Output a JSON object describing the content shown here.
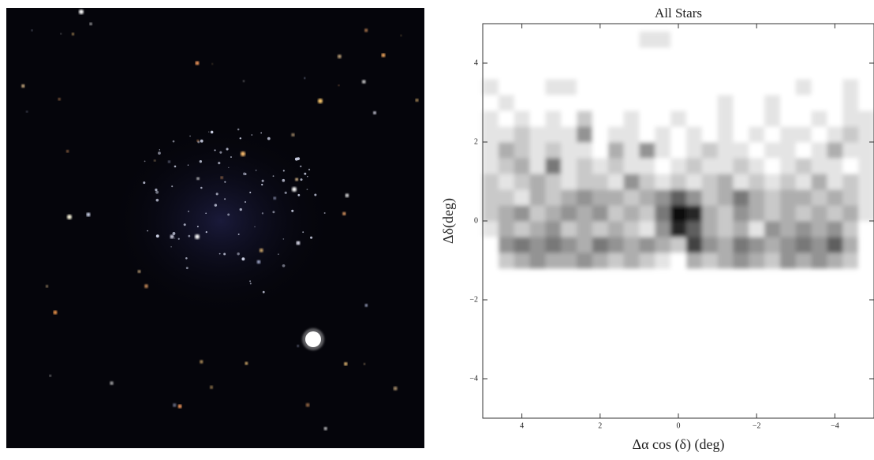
{
  "chart_data": {
    "type": "heatmap",
    "title": "All Stars",
    "xlabel": "Δα cos (δ) (deg)",
    "ylabel": "Δδ(deg)",
    "xlim": [
      5,
      -5
    ],
    "ylim": [
      -5,
      5
    ],
    "xticks": [
      4,
      2,
      0,
      {
        "value": -2,
        "label": "−2"
      },
      {
        "value": -4,
        "label": "−4"
      }
    ],
    "yticks": [
      {
        "value": -4,
        "label": "−4"
      },
      {
        "value": -2,
        "label": "−2"
      },
      0,
      2,
      4
    ],
    "xbins": [
      5,
      4.6,
      4.2,
      3.8,
      3.4,
      3,
      2.6,
      2.2,
      1.8,
      1.4,
      1,
      0.6,
      0.2,
      -0.2,
      -0.6,
      -1,
      -1.4,
      -1.8,
      -2.2,
      -2.6,
      -3,
      -3.4,
      -3.8,
      -4.2,
      -4.6,
      -5
    ],
    "ybins": [
      -1.2,
      -0.8,
      -0.4,
      0,
      0.4,
      0.8,
      1.2,
      1.6,
      2,
      2.4,
      2.8,
      3.2,
      3.6,
      4,
      4.4,
      4.8
    ],
    "values": [
      [
        0,
        2,
        3,
        4,
        3,
        3,
        4,
        3,
        2,
        3,
        2,
        1,
        0,
        3,
        2,
        3,
        4,
        3,
        2,
        4,
        3,
        4,
        3,
        2,
        0
      ],
      [
        0,
        4,
        5,
        4,
        5,
        4,
        3,
        5,
        4,
        3,
        4,
        3,
        2,
        7,
        4,
        3,
        5,
        4,
        3,
        4,
        5,
        4,
        6,
        3,
        0
      ],
      [
        1,
        3,
        2,
        3,
        4,
        2,
        3,
        2,
        3,
        2,
        1,
        4,
        8,
        6,
        3,
        2,
        3,
        1,
        4,
        3,
        4,
        3,
        4,
        2,
        0
      ],
      [
        2,
        3,
        4,
        2,
        3,
        4,
        3,
        4,
        2,
        3,
        2,
        5,
        9,
        8,
        3,
        2,
        4,
        3,
        2,
        3,
        2,
        3,
        2,
        3,
        1
      ],
      [
        2,
        2,
        1,
        3,
        2,
        3,
        4,
        3,
        3,
        2,
        3,
        4,
        6,
        4,
        2,
        3,
        5,
        3,
        2,
        3,
        3,
        2,
        3,
        2,
        1
      ],
      [
        2,
        1,
        2,
        3,
        2,
        1,
        2,
        2,
        1,
        4,
        2,
        1,
        2,
        1,
        2,
        3,
        1,
        2,
        1,
        2,
        1,
        3,
        1,
        2,
        1
      ],
      [
        1,
        2,
        3,
        1,
        5,
        1,
        2,
        1,
        2,
        1,
        1,
        0,
        1,
        2,
        1,
        1,
        2,
        1,
        0,
        1,
        2,
        1,
        1,
        0,
        1
      ],
      [
        1,
        3,
        2,
        1,
        2,
        1,
        1,
        0,
        3,
        1,
        4,
        1,
        0,
        1,
        2,
        1,
        1,
        0,
        1,
        1,
        0,
        1,
        3,
        1,
        1
      ],
      [
        1,
        1,
        2,
        1,
        1,
        1,
        4,
        0,
        1,
        1,
        0,
        1,
        0,
        1,
        0,
        1,
        0,
        1,
        0,
        1,
        1,
        0,
        1,
        2,
        1
      ],
      [
        1,
        0,
        1,
        0,
        1,
        0,
        2,
        0,
        0,
        1,
        0,
        0,
        1,
        0,
        0,
        1,
        0,
        0,
        1,
        0,
        0,
        1,
        0,
        1,
        1
      ],
      [
        0,
        1,
        0,
        0,
        0,
        0,
        0,
        0,
        0,
        0,
        0,
        0,
        0,
        0,
        0,
        1,
        0,
        0,
        1,
        0,
        0,
        0,
        0,
        1,
        0
      ],
      [
        1,
        0,
        0,
        0,
        1,
        1,
        0,
        0,
        0,
        0,
        0,
        0,
        0,
        0,
        0,
        0,
        0,
        0,
        0,
        0,
        1,
        0,
        0,
        1,
        0
      ],
      [
        0,
        0,
        0,
        0,
        0,
        0,
        0,
        0,
        0,
        0,
        0,
        0,
        0,
        0,
        0,
        0,
        0,
        0,
        0,
        0,
        0,
        0,
        0,
        0,
        0
      ],
      [
        0,
        0,
        0,
        0,
        0,
        0,
        0,
        0,
        0,
        0,
        0,
        0,
        0,
        0,
        0,
        0,
        0,
        0,
        0,
        0,
        0,
        0,
        0,
        0,
        0
      ],
      [
        0,
        0,
        0,
        0,
        0,
        0,
        0,
        0,
        0,
        0,
        1,
        1,
        0,
        0,
        0,
        0,
        0,
        0,
        0,
        0,
        0,
        0,
        0,
        0,
        0
      ]
    ]
  }
}
